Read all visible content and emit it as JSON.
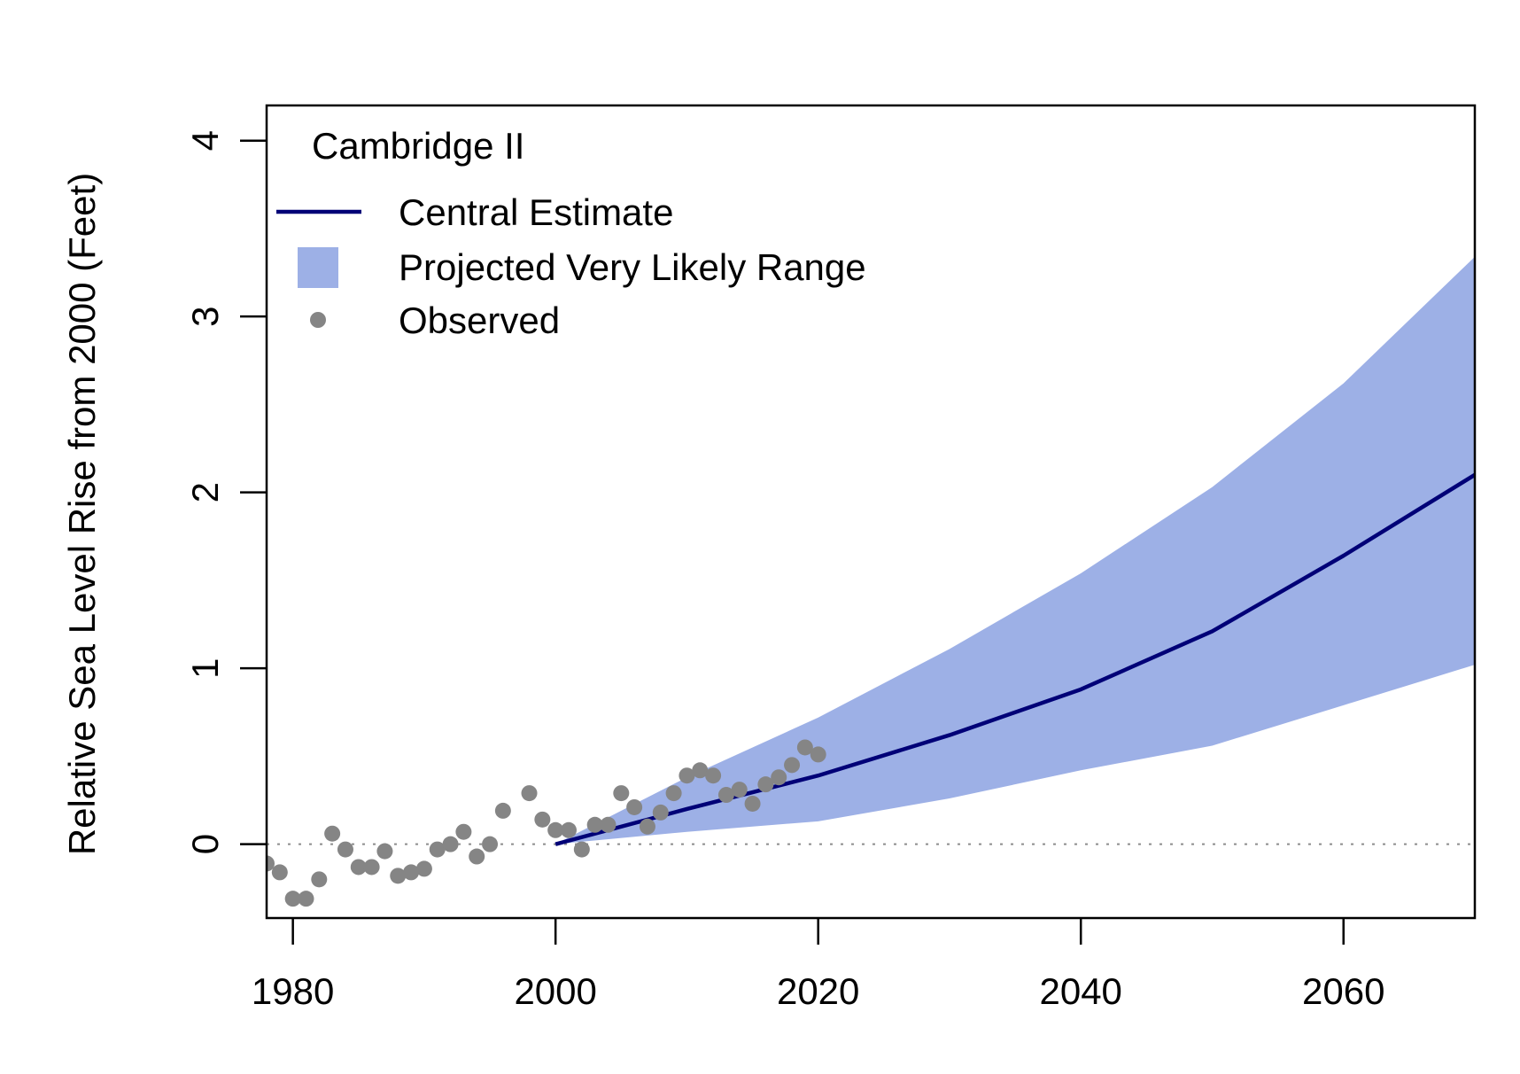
{
  "chart_data": {
    "type": "line",
    "title": "",
    "xlabel": "",
    "ylabel": "Relative Sea Level Rise from 2000 (Feet)",
    "xlim": [
      1978,
      2070
    ],
    "ylim": [
      -0.42,
      4.2
    ],
    "x_ticks": [
      {
        "value": 1980,
        "label": "1980"
      },
      {
        "value": 2000,
        "label": "2000"
      },
      {
        "value": 2020,
        "label": "2020"
      },
      {
        "value": 2040,
        "label": "2040"
      },
      {
        "value": 2060,
        "label": "2060"
      }
    ],
    "y_ticks": [
      {
        "value": 0,
        "label": "0"
      },
      {
        "value": 1,
        "label": "1"
      },
      {
        "value": 2,
        "label": "2"
      },
      {
        "value": 3,
        "label": "3"
      },
      {
        "value": 4,
        "label": "4"
      }
    ],
    "reference_line": {
      "y": 0,
      "style": "dotted",
      "color": "#8c8c8c"
    },
    "legend": {
      "placement": "top-left",
      "title": "Cambridge II",
      "entries": [
        {
          "label": "Central Estimate",
          "kind": "line"
        },
        {
          "label": "Projected Very Likely Range",
          "kind": "band"
        },
        {
          "label": "Observed",
          "kind": "point"
        }
      ]
    },
    "colors": {
      "central": "#000077",
      "band": "#9db0e6",
      "observed": "#858585"
    },
    "band": {
      "name": "Projected Very Likely Range",
      "x": [
        2000,
        2010,
        2020,
        2030,
        2040,
        2050,
        2060,
        2070
      ],
      "lower": [
        0,
        0.07,
        0.13,
        0.26,
        0.42,
        0.56,
        0.79,
        1.02
      ],
      "upper": [
        0,
        0.38,
        0.72,
        1.11,
        1.54,
        2.03,
        2.62,
        3.34
      ]
    },
    "series": [
      {
        "name": "Central Estimate",
        "x": [
          2000,
          2010,
          2020,
          2030,
          2040,
          2050,
          2060,
          2070
        ],
        "values": [
          0,
          0.2,
          0.39,
          0.62,
          0.88,
          1.21,
          1.64,
          2.1
        ]
      },
      {
        "name": "Observed",
        "x": [
          1978,
          1979,
          1980,
          1981,
          1982,
          1983,
          1984,
          1985,
          1986,
          1987,
          1988,
          1989,
          1990,
          1991,
          1992,
          1993,
          1994,
          1995,
          1996,
          1998,
          1999,
          2000,
          2001,
          2002,
          2003,
          2004,
          2005,
          2006,
          2007,
          2008,
          2009,
          2010,
          2011,
          2012,
          2013,
          2014,
          2015,
          2016,
          2017,
          2018,
          2019,
          2020
        ],
        "values": [
          -0.11,
          -0.16,
          -0.31,
          -0.31,
          -0.2,
          0.06,
          -0.03,
          -0.13,
          -0.13,
          -0.04,
          -0.18,
          -0.16,
          -0.14,
          -0.03,
          0.0,
          0.07,
          -0.07,
          0.0,
          0.19,
          0.29,
          0.14,
          0.08,
          0.08,
          -0.03,
          0.11,
          0.11,
          0.29,
          0.21,
          0.1,
          0.18,
          0.29,
          0.39,
          0.42,
          0.39,
          0.28,
          0.31,
          0.23,
          0.34,
          0.38,
          0.45,
          0.55,
          0.51
        ]
      }
    ]
  }
}
